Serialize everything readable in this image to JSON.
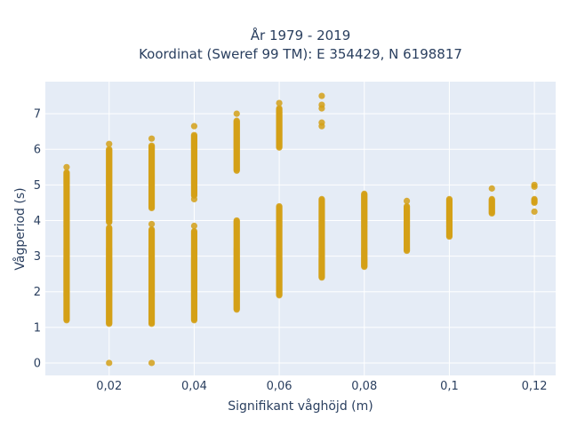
{
  "chart_data": {
    "type": "scatter",
    "title_line1": "År 1979 - 2019",
    "title_line2": "Koordinat (Sweref 99 TM): E 354429, N 6198817",
    "xlabel": "Signifikant våghöjd (m)",
    "ylabel": "Vågperiod (s)",
    "xlim": [
      0.005,
      0.125
    ],
    "ylim": [
      -0.35,
      7.9
    ],
    "x_ticks": [
      {
        "value": 0.02,
        "label": "0,02"
      },
      {
        "value": 0.04,
        "label": "0,04"
      },
      {
        "value": 0.06,
        "label": "0,06"
      },
      {
        "value": 0.08,
        "label": "0,08"
      },
      {
        "value": 0.1,
        "label": "0,1"
      },
      {
        "value": 0.12,
        "label": "0,12"
      }
    ],
    "y_ticks": [
      {
        "value": 0,
        "label": "0"
      },
      {
        "value": 1,
        "label": "1"
      },
      {
        "value": 2,
        "label": "2"
      },
      {
        "value": 3,
        "label": "3"
      },
      {
        "value": 4,
        "label": "4"
      },
      {
        "value": 5,
        "label": "5"
      },
      {
        "value": 6,
        "label": "6"
      },
      {
        "value": 7,
        "label": "7"
      }
    ],
    "grid": true,
    "marker_color": "#D4A017",
    "background_color": "#E5ECF6",
    "series": [
      {
        "columns": [
          {
            "x": 0.01,
            "segments": [
              [
                1.2,
                5.35
              ]
            ],
            "extra": [
              5.5
            ]
          },
          {
            "x": 0.02,
            "segments": [
              [
                1.1,
                3.8
              ],
              [
                3.95,
                6.0
              ]
            ],
            "extra": [
              6.15,
              0.0
            ]
          },
          {
            "x": 0.03,
            "segments": [
              [
                1.1,
                3.75
              ],
              [
                4.35,
                6.1
              ]
            ],
            "extra": [
              3.9,
              6.3,
              0.0
            ]
          },
          {
            "x": 0.04,
            "segments": [
              [
                1.2,
                3.7
              ],
              [
                4.7,
                6.4
              ]
            ],
            "extra": [
              3.85,
              4.6,
              6.65
            ]
          },
          {
            "x": 0.05,
            "segments": [
              [
                1.5,
                4.0
              ],
              [
                5.4,
                6.8
              ]
            ],
            "extra": [
              7.0
            ]
          },
          {
            "x": 0.06,
            "segments": [
              [
                1.9,
                4.4
              ],
              [
                6.05,
                7.15
              ]
            ],
            "extra": [
              7.3
            ]
          },
          {
            "x": 0.07,
            "segments": [
              [
                2.4,
                4.6
              ]
            ],
            "extra": [
              6.65,
              6.75,
              7.15,
              7.25,
              7.5
            ]
          },
          {
            "x": 0.08,
            "segments": [
              [
                2.7,
                4.75
              ]
            ],
            "extra": []
          },
          {
            "x": 0.09,
            "segments": [
              [
                3.15,
                4.4
              ]
            ],
            "extra": [
              4.55
            ]
          },
          {
            "x": 0.1,
            "segments": [
              [
                3.55,
                4.6
              ]
            ],
            "extra": []
          },
          {
            "x": 0.11,
            "segments": [
              [
                4.2,
                4.6
              ]
            ],
            "extra": [
              4.9
            ]
          },
          {
            "x": 0.12,
            "segments": [
              [
                4.5,
                4.6
              ]
            ],
            "extra": [
              4.25,
              4.95,
              5.0
            ]
          }
        ]
      }
    ]
  }
}
